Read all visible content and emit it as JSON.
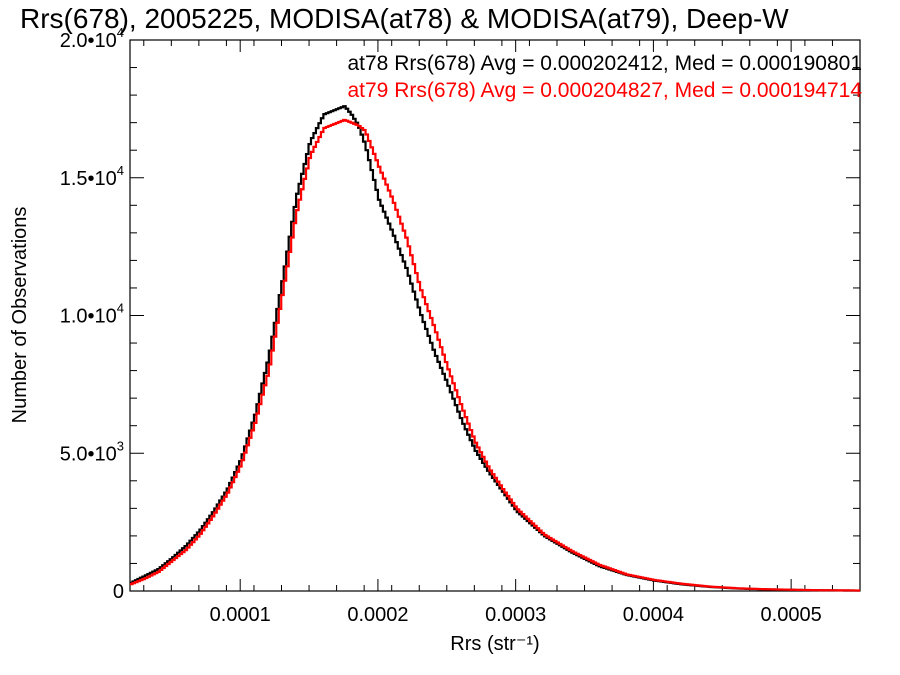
{
  "chart_data": {
    "type": "line",
    "title": "Rrs(678), 2005225, MODISA(at78) & MODISA(at79), Deep-W",
    "xlabel": "Rrs (str⁻¹)",
    "ylabel": "Number of Observations",
    "xlim": [
      2e-05,
      0.00055
    ],
    "ylim": [
      0,
      20000
    ],
    "grid": false,
    "legend_position": "top-right",
    "x_ticks": [
      {
        "value": 0.0001,
        "label": "0.0001"
      },
      {
        "value": 0.0002,
        "label": "0.0002"
      },
      {
        "value": 0.0003,
        "label": "0.0003"
      },
      {
        "value": 0.0004,
        "label": "0.0004"
      },
      {
        "value": 0.0005,
        "label": "0.0005"
      }
    ],
    "y_ticks": [
      {
        "value": 0,
        "mant": "0",
        "exp": ""
      },
      {
        "value": 5000,
        "mant": "5.0•10",
        "exp": "3"
      },
      {
        "value": 10000,
        "mant": "1.0•10",
        "exp": "4"
      },
      {
        "value": 15000,
        "mant": "1.5•10",
        "exp": "4"
      },
      {
        "value": 20000,
        "mant": "2.0•10",
        "exp": "4"
      }
    ],
    "series": [
      {
        "name": "at78",
        "legend_text": "at78 Rrs(678) Avg = 0.000202412, Med = 0.000190801",
        "color": "#000000",
        "x": [
          2e-05,
          3e-05,
          4e-05,
          5e-05,
          6e-05,
          7e-05,
          8e-05,
          9e-05,
          0.0001,
          0.00011,
          0.00012,
          0.00013,
          0.00014,
          0.00015,
          0.00016,
          0.00017,
          0.000175,
          0.00018,
          0.000185,
          0.00019,
          0.0002,
          0.00021,
          0.00022,
          0.00023,
          0.00024,
          0.00025,
          0.00026,
          0.00027,
          0.00028,
          0.00029,
          0.0003,
          0.00032,
          0.00034,
          0.00036,
          0.00038,
          0.0004,
          0.00042,
          0.00044,
          0.00046,
          0.00048,
          0.0005,
          0.00052,
          0.00055
        ],
        "y": [
          300,
          550,
          800,
          1200,
          1650,
          2200,
          2900,
          3700,
          4800,
          6400,
          8500,
          11300,
          14300,
          16300,
          17300,
          17500,
          17600,
          17300,
          16900,
          16200,
          14200,
          13000,
          11700,
          10100,
          8700,
          7500,
          6200,
          5100,
          4300,
          3600,
          2900,
          2000,
          1400,
          900,
          580,
          380,
          240,
          150,
          90,
          60,
          40,
          25,
          15
        ]
      },
      {
        "name": "at79",
        "legend_text": "at79 Rrs(678) Avg = 0.000204827, Med = 0.000194714",
        "color": "#ff0000",
        "x": [
          2e-05,
          3e-05,
          4e-05,
          5e-05,
          6e-05,
          7e-05,
          8e-05,
          9e-05,
          0.0001,
          0.00011,
          0.00012,
          0.00013,
          0.00014,
          0.00015,
          0.00016,
          0.00017,
          0.000175,
          0.00018,
          0.000185,
          0.00019,
          0.0002,
          0.00021,
          0.00022,
          0.00023,
          0.00024,
          0.00025,
          0.00026,
          0.00027,
          0.00028,
          0.00029,
          0.0003,
          0.00032,
          0.00034,
          0.00036,
          0.00038,
          0.0004,
          0.00042,
          0.00044,
          0.00046,
          0.00048,
          0.0005,
          0.00052,
          0.00055
        ],
        "y": [
          250,
          450,
          700,
          1100,
          1500,
          2050,
          2750,
          3550,
          4600,
          6100,
          8000,
          10800,
          13700,
          15800,
          16800,
          17000,
          17100,
          17000,
          16900,
          16700,
          15400,
          14200,
          12800,
          11000,
          9600,
          8100,
          6700,
          5400,
          4450,
          3700,
          3000,
          2050,
          1450,
          950,
          600,
          400,
          260,
          160,
          100,
          65,
          45,
          28,
          18
        ]
      }
    ]
  }
}
